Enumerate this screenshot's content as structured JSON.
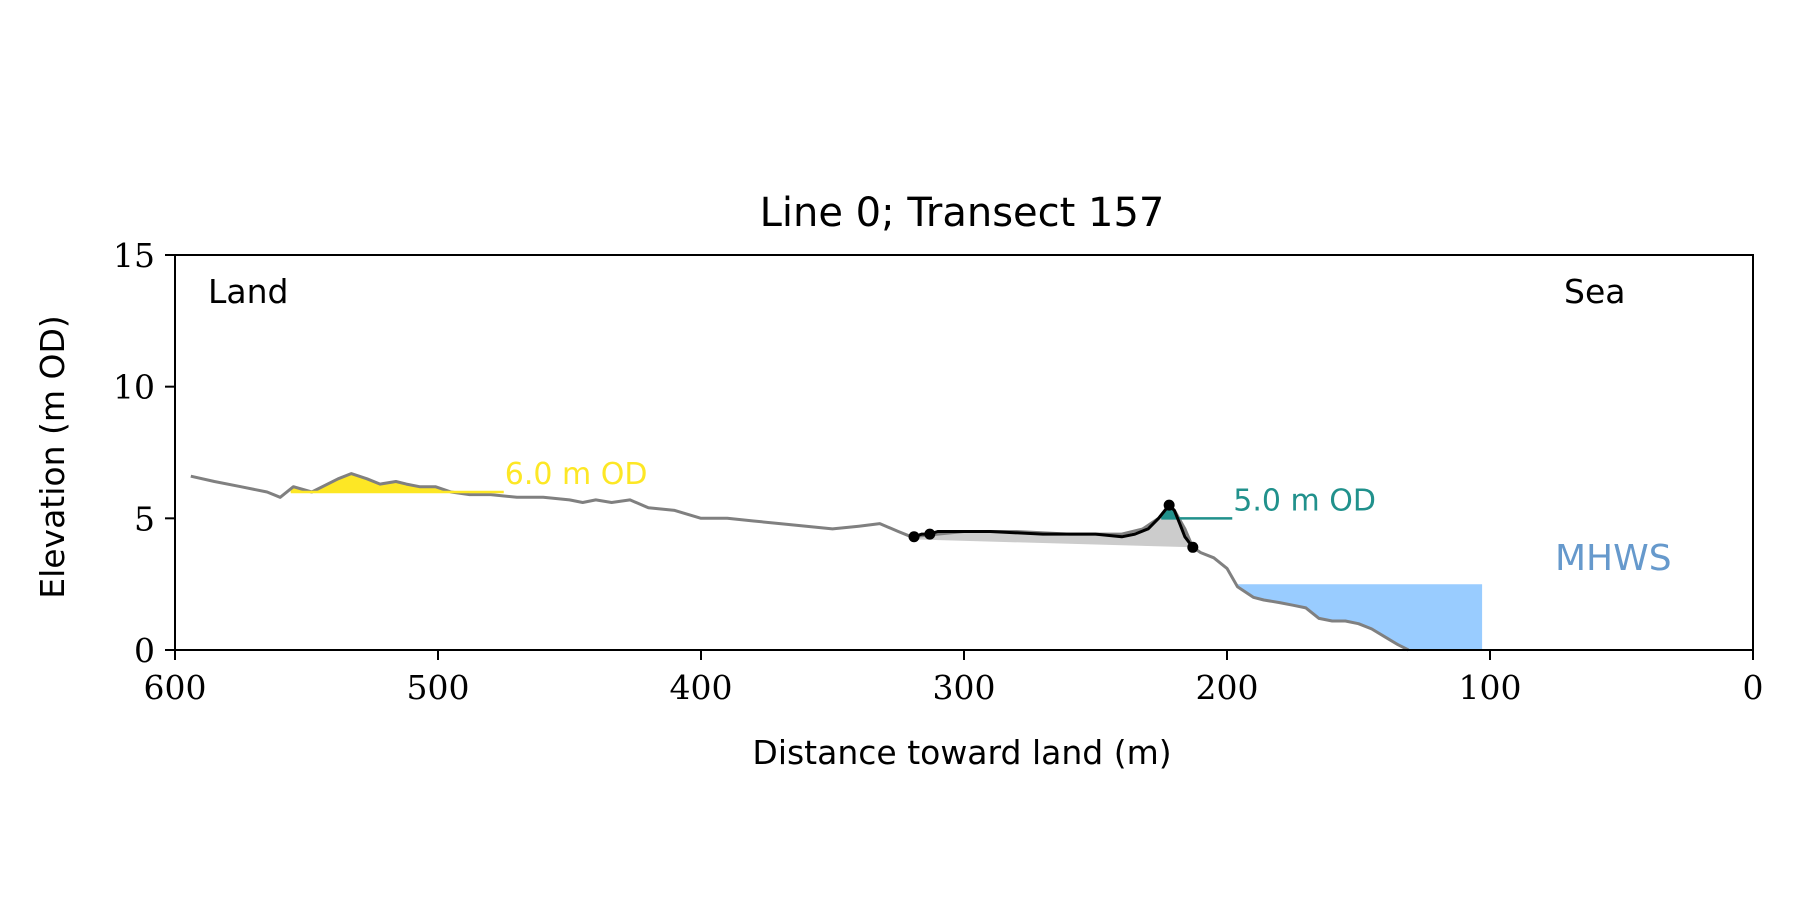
{
  "chart_data": {
    "type": "line",
    "title": "Line 0; Transect 157",
    "xlabel": "Distance toward land (m)",
    "ylabel": "Elevation (m OD)",
    "xlim": [
      600,
      0
    ],
    "ylim": [
      0,
      15
    ],
    "x_ticks": [
      600,
      500,
      400,
      300,
      200,
      100,
      0
    ],
    "y_ticks": [
      0,
      5,
      10,
      15
    ],
    "grid": false,
    "legend": "none",
    "corner_labels": {
      "land": "Land",
      "sea": "Sea"
    },
    "colors": {
      "profile": "#808080",
      "dune": "#000000",
      "dune_fill": "#cccccc",
      "contour_high": "#fde725",
      "contour_low": "#21918c",
      "mhws": "#6699cc",
      "mhws_fill": "#99ccff"
    },
    "series": [
      {
        "role": "profile",
        "x": [
          594,
          585,
          575,
          565,
          560,
          555,
          548,
          538,
          533,
          527,
          522,
          516,
          512,
          507,
          501,
          495,
          488,
          480,
          470,
          460,
          450,
          445,
          440,
          434,
          427,
          420,
          410,
          400,
          390,
          380,
          370,
          360,
          350,
          340,
          332,
          325,
          320,
          310,
          300,
          280,
          260,
          240,
          232,
          226,
          222,
          220,
          216,
          213,
          210,
          205,
          200,
          196,
          190,
          186,
          180,
          175,
          170,
          165,
          160,
          155,
          150,
          145,
          140,
          135,
          131
        ],
        "y": [
          6.6,
          6.4,
          6.2,
          6.0,
          5.8,
          6.2,
          6.0,
          6.5,
          6.7,
          6.5,
          6.3,
          6.4,
          6.3,
          6.2,
          6.2,
          6.0,
          5.9,
          5.9,
          5.8,
          5.8,
          5.7,
          5.6,
          5.7,
          5.6,
          5.7,
          5.4,
          5.3,
          5.0,
          5.0,
          4.9,
          4.8,
          4.7,
          4.6,
          4.7,
          4.8,
          4.5,
          4.3,
          4.4,
          4.5,
          4.5,
          4.4,
          4.4,
          4.6,
          5.0,
          5.5,
          5.3,
          4.6,
          3.9,
          3.7,
          3.5,
          3.1,
          2.4,
          2.0,
          1.9,
          1.8,
          1.7,
          1.6,
          1.2,
          1.1,
          1.1,
          1.0,
          0.8,
          0.5,
          0.2,
          0.0
        ]
      },
      {
        "role": "dune",
        "x": [
          319,
          316,
          313,
          310,
          305,
          300,
          290,
          270,
          250,
          240,
          235,
          230,
          226,
          222,
          220,
          218,
          216,
          213
        ],
        "y": [
          4.3,
          4.4,
          4.4,
          4.5,
          4.5,
          4.5,
          4.5,
          4.4,
          4.4,
          4.3,
          4.4,
          4.6,
          5.0,
          5.5,
          5.3,
          4.8,
          4.3,
          3.9
        ]
      },
      {
        "role": "dune_points",
        "x": [
          319,
          313,
          222,
          213
        ],
        "y": [
          4.3,
          4.4,
          5.5,
          3.9
        ]
      },
      {
        "role": "dune_base",
        "x": [
          319,
          213
        ],
        "y": [
          4.2,
          3.9
        ]
      }
    ],
    "annotations": [
      {
        "label": "6.0 m OD",
        "elevation": 6.0,
        "x_start": 556,
        "x_end": 475
      },
      {
        "label": "5.0 m OD",
        "elevation": 5.0,
        "x_start": 225,
        "x_end": 198
      },
      {
        "label": "MHWS",
        "elevation": 2.5,
        "x_start": 198,
        "x_end": 103
      }
    ]
  }
}
